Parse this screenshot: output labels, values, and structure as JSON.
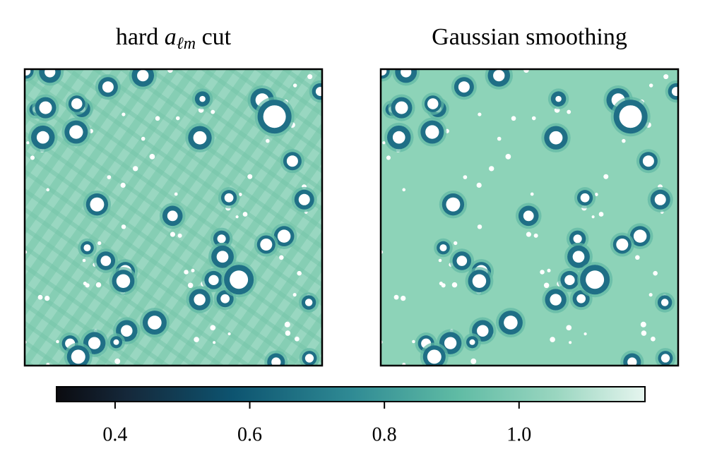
{
  "chart_data": [
    {
      "type": "heatmap",
      "title_parts": [
        "hard ",
        "a",
        "ℓm",
        " cut"
      ]
    },
    {
      "type": "heatmap",
      "title_parts": [
        "Gaussian smoothing"
      ]
    }
  ],
  "colorbar": {
    "lim": [
      0.313,
      1.187
    ],
    "ticks": [
      0.4,
      0.6,
      0.8,
      {
        "value": 1,
        "label": "1.0"
      }
    ]
  }
}
